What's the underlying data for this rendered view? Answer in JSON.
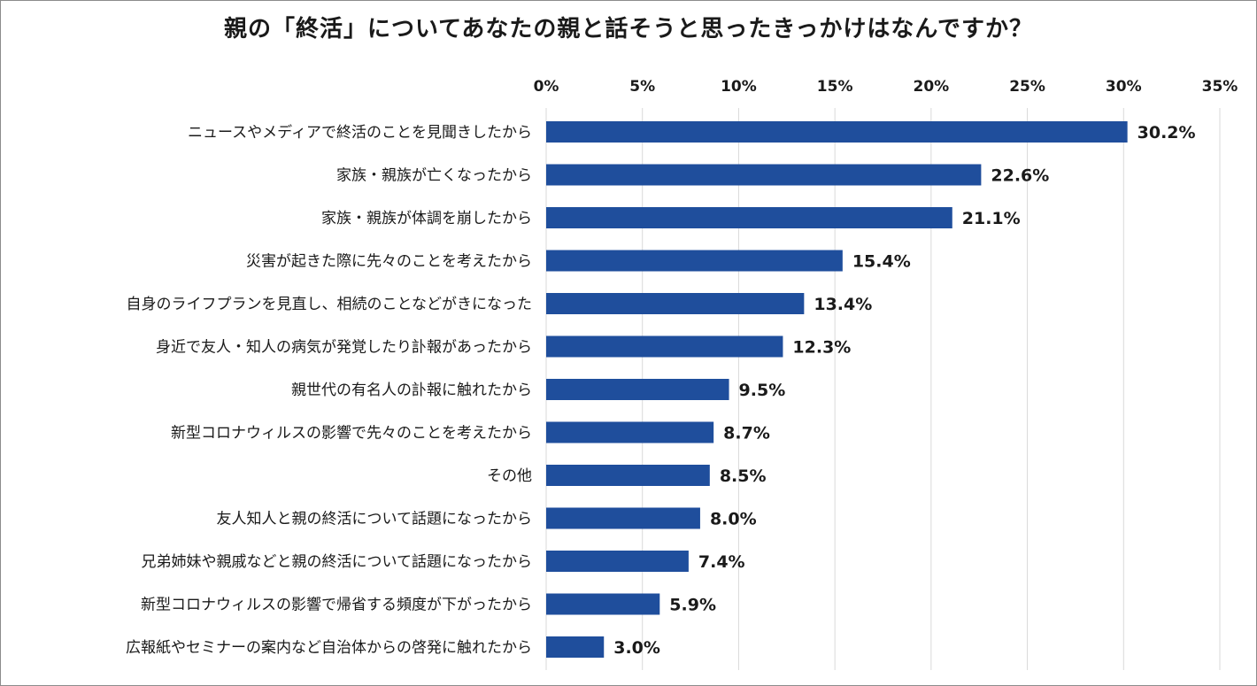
{
  "chart_data": {
    "type": "bar",
    "orientation": "horizontal",
    "title": "親の「終活」についてあなたの親と話そうと思ったきっかけはなんですか？",
    "categories": [
      "ニュースやメディアで終活のことを見聞きしたから",
      "家族・親族が亡くなったから",
      "家族・親族が体調を崩したから",
      "災害が起きた際に先々のことを考えたから",
      "自身のライフプランを見直し、相続のことなどがきになった",
      "身近で友人・知人の病気が発覚したり訃報があったから",
      "親世代の有名人の訃報に触れたから",
      "新型コロナウィルスの影響で先々のことを考えたから",
      "その他",
      "友人知人と親の終活について話題になったから",
      "兄弟姉妹や親戚などと親の終活について話題になったから",
      "新型コロナウィルスの影響で帰省する頻度が下がったから",
      "広報紙やセミナーの案内など自治体からの啓発に触れたから"
    ],
    "values": [
      30.2,
      22.6,
      21.1,
      15.4,
      13.4,
      12.3,
      9.5,
      8.7,
      8.5,
      8.0,
      7.4,
      5.9,
      3.0
    ],
    "data_labels": [
      "30.2%",
      "22.6%",
      "21.1%",
      "15.4%",
      "13.4%",
      "12.3%",
      "9.5%",
      "8.7%",
      "8.5%",
      "8.0%",
      "7.4%",
      "5.9%",
      "3.0%"
    ],
    "xlim": [
      0,
      35
    ],
    "x_ticks": [
      0,
      5,
      10,
      15,
      20,
      25,
      30,
      35
    ],
    "x_tick_labels": [
      "0%",
      "5%",
      "10%",
      "15%",
      "20%",
      "25%",
      "30%",
      "35%"
    ],
    "x_axis_position": "top",
    "grid": true,
    "legend": "none",
    "xlabel": "",
    "ylabel": "",
    "bar_color": "#1f4e9c"
  }
}
